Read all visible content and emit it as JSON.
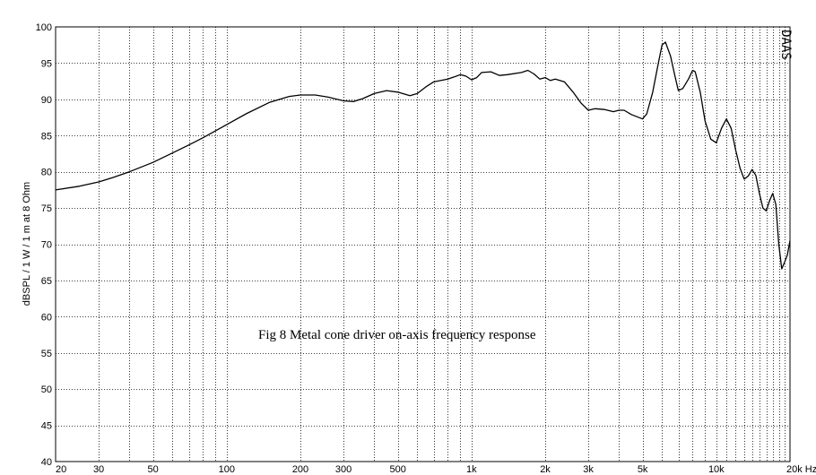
{
  "chart_data": {
    "type": "line",
    "title": "",
    "xlabel": "",
    "ylabel": "dBSPL / 1 W / 1 m at 8 Ohm",
    "x_scale": "log",
    "x_unit": "Hz",
    "xlim": [
      20,
      20000
    ],
    "ylim": [
      40,
      100
    ],
    "grid": true,
    "x_ticks": [
      {
        "value": 20,
        "label": "20"
      },
      {
        "value": 30,
        "label": "30"
      },
      {
        "value": 50,
        "label": "50"
      },
      {
        "value": 100,
        "label": "100"
      },
      {
        "value": 200,
        "label": "200"
      },
      {
        "value": 300,
        "label": "300"
      },
      {
        "value": 500,
        "label": "500"
      },
      {
        "value": 1000,
        "label": "1k"
      },
      {
        "value": 2000,
        "label": "2k"
      },
      {
        "value": 3000,
        "label": "3k"
      },
      {
        "value": 5000,
        "label": "5k"
      },
      {
        "value": 10000,
        "label": "10k"
      },
      {
        "value": 20000,
        "label": "20k Hz"
      }
    ],
    "y_ticks": [
      40,
      45,
      50,
      55,
      60,
      65,
      70,
      75,
      80,
      85,
      90,
      95,
      100
    ],
    "annotation": "Fig 8  Metal cone driver on-axis frequency response",
    "watermark": "DAAS",
    "series": [
      {
        "color": "#000000",
        "points": [
          [
            20,
            77.5
          ],
          [
            25,
            78.0
          ],
          [
            30,
            78.6
          ],
          [
            35,
            79.3
          ],
          [
            40,
            80.0
          ],
          [
            50,
            81.3
          ],
          [
            60,
            82.6
          ],
          [
            70,
            83.7
          ],
          [
            80,
            84.7
          ],
          [
            100,
            86.5
          ],
          [
            120,
            88.0
          ],
          [
            150,
            89.6
          ],
          [
            180,
            90.4
          ],
          [
            200,
            90.6
          ],
          [
            230,
            90.6
          ],
          [
            260,
            90.3
          ],
          [
            300,
            89.8
          ],
          [
            330,
            89.7
          ],
          [
            360,
            90.1
          ],
          [
            400,
            90.8
          ],
          [
            450,
            91.2
          ],
          [
            500,
            91.0
          ],
          [
            560,
            90.5
          ],
          [
            600,
            90.8
          ],
          [
            650,
            91.7
          ],
          [
            700,
            92.4
          ],
          [
            800,
            92.8
          ],
          [
            850,
            93.1
          ],
          [
            900,
            93.4
          ],
          [
            950,
            93.2
          ],
          [
            1000,
            92.7
          ],
          [
            1050,
            93.0
          ],
          [
            1100,
            93.7
          ],
          [
            1200,
            93.8
          ],
          [
            1300,
            93.3
          ],
          [
            1400,
            93.4
          ],
          [
            1600,
            93.7
          ],
          [
            1700,
            94.0
          ],
          [
            1800,
            93.5
          ],
          [
            1900,
            92.8
          ],
          [
            2000,
            93.0
          ],
          [
            2100,
            92.6
          ],
          [
            2200,
            92.8
          ],
          [
            2400,
            92.4
          ],
          [
            2600,
            91.0
          ],
          [
            2800,
            89.5
          ],
          [
            3000,
            88.5
          ],
          [
            3200,
            88.7
          ],
          [
            3500,
            88.6
          ],
          [
            3800,
            88.3
          ],
          [
            4000,
            88.5
          ],
          [
            4200,
            88.5
          ],
          [
            4500,
            87.9
          ],
          [
            5000,
            87.3
          ],
          [
            5200,
            88.0
          ],
          [
            5500,
            91.0
          ],
          [
            5800,
            95.0
          ],
          [
            6000,
            97.5
          ],
          [
            6200,
            97.9
          ],
          [
            6500,
            96.0
          ],
          [
            6800,
            93.0
          ],
          [
            7000,
            91.2
          ],
          [
            7300,
            91.5
          ],
          [
            7700,
            92.8
          ],
          [
            8000,
            94.0
          ],
          [
            8200,
            93.8
          ],
          [
            8600,
            91.0
          ],
          [
            9000,
            87.0
          ],
          [
            9500,
            84.5
          ],
          [
            10000,
            84.0
          ],
          [
            10500,
            86.0
          ],
          [
            11000,
            87.3
          ],
          [
            11500,
            86.0
          ],
          [
            12000,
            83.0
          ],
          [
            12500,
            80.5
          ],
          [
            13000,
            79.0
          ],
          [
            13500,
            79.4
          ],
          [
            14000,
            80.3
          ],
          [
            14500,
            79.5
          ],
          [
            15000,
            77.0
          ],
          [
            15500,
            75.0
          ],
          [
            16000,
            74.6
          ],
          [
            16500,
            76.0
          ],
          [
            17000,
            77.0
          ],
          [
            17500,
            75.5
          ],
          [
            18000,
            70.0
          ],
          [
            18500,
            66.6
          ],
          [
            19000,
            67.5
          ],
          [
            19500,
            68.5
          ],
          [
            20000,
            70.5
          ],
          [
            21000,
            71.3
          ],
          [
            22000,
            70.8
          ],
          [
            23000,
            70.0
          ]
        ]
      }
    ]
  }
}
